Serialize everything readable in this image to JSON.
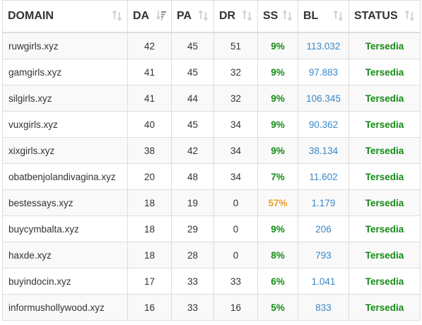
{
  "columns": [
    {
      "key": "domain",
      "label": "DOMAIN",
      "sort": "none"
    },
    {
      "key": "da",
      "label": "DA",
      "sort": "desc"
    },
    {
      "key": "pa",
      "label": "PA",
      "sort": "none"
    },
    {
      "key": "dr",
      "label": "DR",
      "sort": "none"
    },
    {
      "key": "ss",
      "label": "SS",
      "sort": "none"
    },
    {
      "key": "bl",
      "label": "BL",
      "sort": "none"
    },
    {
      "key": "status",
      "label": "STATUS",
      "sort": "none"
    }
  ],
  "colors": {
    "ss_default": "#138a13",
    "ss_warning": "#f0a020",
    "bl_link": "#3a87c8",
    "status_ok": "#138a13"
  },
  "rows": [
    {
      "domain": "ruwgirls.xyz",
      "da": "42",
      "pa": "45",
      "dr": "51",
      "ss": "9%",
      "bl": "113.032",
      "status": "Tersedia"
    },
    {
      "domain": "gamgirls.xyz",
      "da": "41",
      "pa": "45",
      "dr": "32",
      "ss": "9%",
      "bl": "97.883",
      "status": "Tersedia"
    },
    {
      "domain": "silgirls.xyz",
      "da": "41",
      "pa": "44",
      "dr": "32",
      "ss": "9%",
      "bl": "106.345",
      "status": "Tersedia"
    },
    {
      "domain": "vuxgirls.xyz",
      "da": "40",
      "pa": "45",
      "dr": "34",
      "ss": "9%",
      "bl": "90.362",
      "status": "Tersedia"
    },
    {
      "domain": "xixgirls.xyz",
      "da": "38",
      "pa": "42",
      "dr": "34",
      "ss": "9%",
      "bl": "38.134",
      "status": "Tersedia"
    },
    {
      "domain": "obatbenjolandivagina.xyz",
      "da": "20",
      "pa": "48",
      "dr": "34",
      "ss": "7%",
      "bl": "11.602",
      "status": "Tersedia"
    },
    {
      "domain": "bestessays.xyz",
      "da": "18",
      "pa": "19",
      "dr": "0",
      "ss": "57%",
      "ss_level": "warning",
      "bl": "1.179",
      "status": "Tersedia"
    },
    {
      "domain": "buycymbalta.xyz",
      "da": "18",
      "pa": "29",
      "dr": "0",
      "ss": "9%",
      "bl": "206",
      "status": "Tersedia"
    },
    {
      "domain": "haxde.xyz",
      "da": "18",
      "pa": "28",
      "dr": "0",
      "ss": "8%",
      "bl": "793",
      "status": "Tersedia"
    },
    {
      "domain": "buyindocin.xyz",
      "da": "17",
      "pa": "33",
      "dr": "33",
      "ss": "6%",
      "bl": "1.041",
      "status": "Tersedia"
    },
    {
      "domain": "informushollywood.xyz",
      "da": "16",
      "pa": "33",
      "dr": "16",
      "ss": "5%",
      "bl": "833",
      "status": "Tersedia"
    }
  ]
}
